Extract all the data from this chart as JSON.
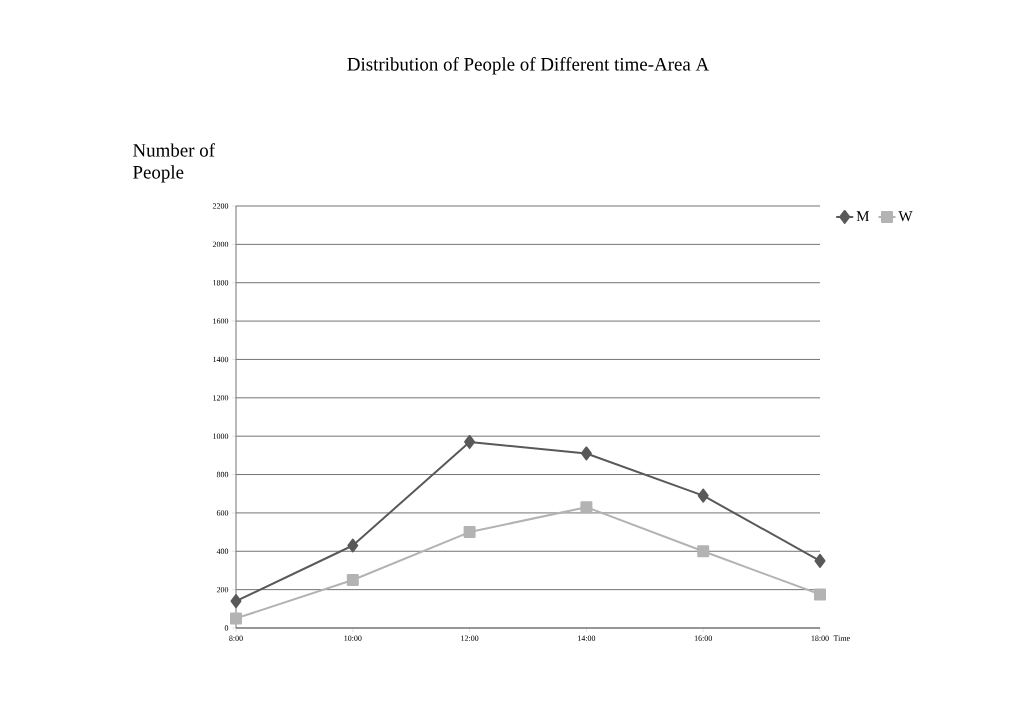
{
  "chart_data": {
    "type": "line",
    "title": "Distribution of People of Different time-Area A",
    "xlabel": "Time",
    "ylabel": "Number of People",
    "categories": [
      "8:00",
      "10:00",
      "12:00",
      "14:00",
      "16:00",
      "18:00"
    ],
    "series": [
      {
        "name": "M",
        "color": "#595959",
        "marker": "diamond",
        "values": [
          140,
          430,
          970,
          910,
          690,
          350
        ]
      },
      {
        "name": "W",
        "color": "#b3b3b3",
        "marker": "square",
        "values": [
          50,
          250,
          500,
          630,
          400,
          175
        ]
      }
    ],
    "ylim": [
      0,
      2200
    ],
    "yticks": [
      0,
      200,
      400,
      600,
      800,
      1000,
      1200,
      1400,
      1600,
      1800,
      2000,
      2200
    ],
    "grid": "y",
    "legend": "right"
  }
}
